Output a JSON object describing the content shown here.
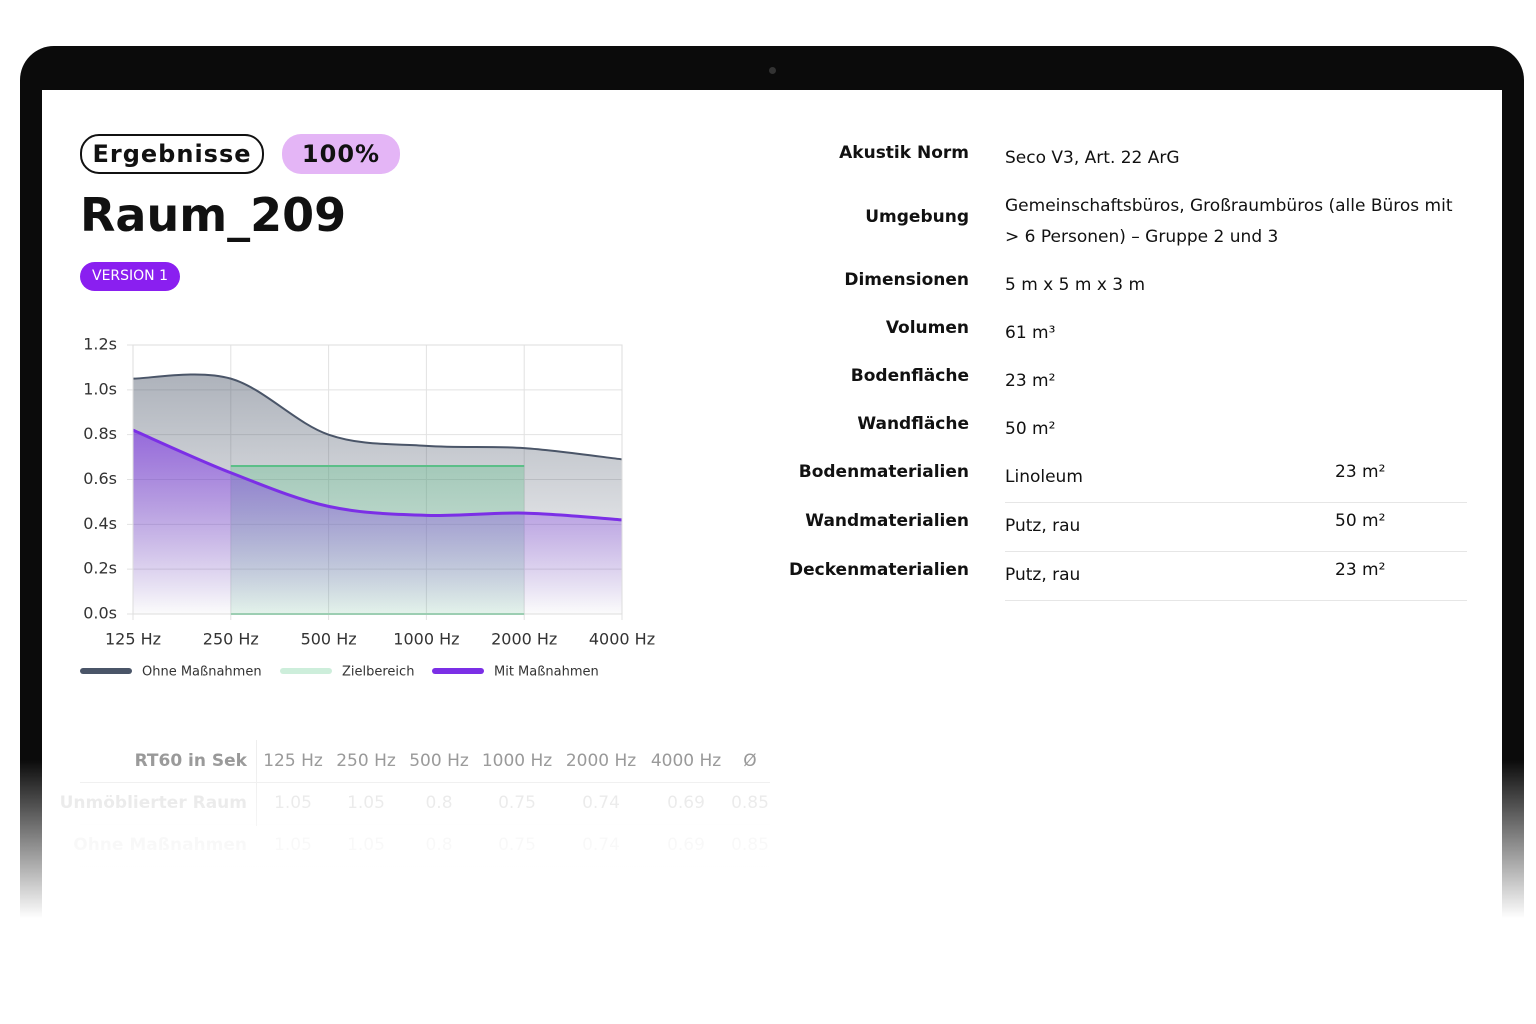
{
  "header": {
    "badge": "Ergebnisse",
    "progress": "100%",
    "title": "Raum_209",
    "version": "VERSION 1"
  },
  "chart_data": {
    "type": "area",
    "categories": [
      "125 Hz",
      "250 Hz",
      "500 Hz",
      "1000 Hz",
      "2000 Hz",
      "4000 Hz"
    ],
    "series": [
      {
        "name": "Ohne Maßnahmen",
        "color": "#4a5568",
        "values": [
          1.05,
          1.05,
          0.8,
          0.75,
          0.74,
          0.69
        ]
      },
      {
        "name": "Zielbereich",
        "color": "#5cbf88",
        "values": [
          null,
          0.66,
          0.66,
          0.66,
          0.66,
          null
        ],
        "low": [
          null,
          0,
          0,
          0,
          0,
          null
        ]
      },
      {
        "name": "Mit Maßnahmen",
        "color": "#7b2fe6",
        "values": [
          0.82,
          0.63,
          0.48,
          0.44,
          0.45,
          0.42
        ]
      }
    ],
    "ylim": [
      0,
      1.2
    ],
    "yticks": [
      {
        "value": 0,
        "label": "0.0s"
      },
      {
        "value": 0.2,
        "label": "0.2s"
      },
      {
        "value": 0.4,
        "label": "0.4s"
      },
      {
        "value": 0.6,
        "label": "0.6s"
      },
      {
        "value": 0.8,
        "label": "0.8s"
      },
      {
        "value": 1,
        "label": "1.0s"
      },
      {
        "value": 1.2,
        "label": "1.2s"
      }
    ],
    "grid": true
  },
  "details": [
    {
      "label": "Akustik Norm",
      "value": "Seco V3, Art. 22 ArG"
    },
    {
      "label": "Umgebung",
      "value": "Gemeinschaftsbüros, Großraumbüros (alle Büros mit > 6 Personen) – Gruppe 2 und 3"
    },
    {
      "label": "Dimensionen",
      "value": "5 m x 5 m x 3 m"
    },
    {
      "label": "Volumen",
      "value": "61 m³"
    },
    {
      "label": "Bodenfläche",
      "value": "23 m²"
    },
    {
      "label": "Wandfläche",
      "value": "50 m²"
    },
    {
      "label": "Bodenmaterialien",
      "value": "Linoleum",
      "area": "23 m²"
    },
    {
      "label": "Wandmaterialien",
      "value": "Putz, rau",
      "area": "50 m²"
    },
    {
      "label": "Deckenmaterialien",
      "value": "Putz, rau",
      "area": "23 m²"
    }
  ],
  "table": {
    "header": [
      "RT60 in Sek",
      "125 Hz",
      "250 Hz",
      "500 Hz",
      "1000 Hz",
      "2000 Hz",
      "4000 Hz",
      "Ø"
    ],
    "rows": [
      [
        "Unmöblierter Raum",
        1.05,
        1.05,
        0.8,
        0.75,
        0.74,
        0.69,
        0.85
      ],
      [
        "Ohne Maßnahmen",
        1.05,
        1.05,
        0.8,
        0.75,
        0.74,
        0.69,
        0.85
      ]
    ]
  }
}
